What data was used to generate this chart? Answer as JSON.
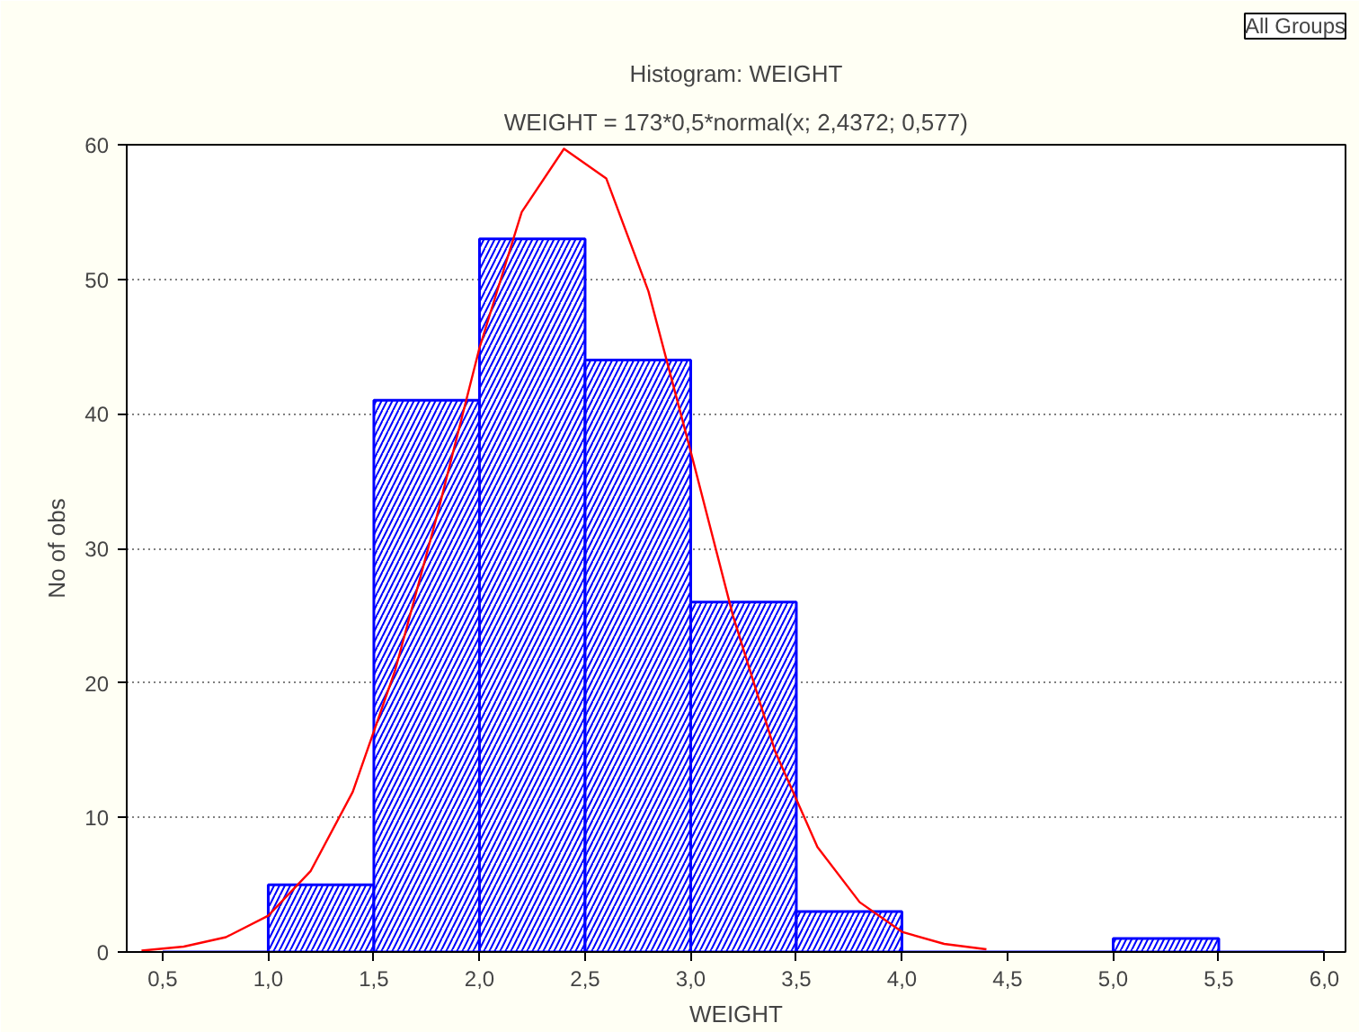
{
  "chart_data": {
    "type": "histogram",
    "title": "Histogram: WEIGHT",
    "subtitle": "WEIGHT = 173*0,5*normal(x; 2,4372; 0,577)",
    "xlabel": "WEIGHT",
    "ylabel": "No of obs",
    "annotations": [
      "All Groups"
    ],
    "bins": [
      0.5,
      1.0,
      1.5,
      2.0,
      2.5,
      3.0,
      3.5,
      4.0,
      4.5,
      5.0,
      5.5,
      6.0
    ],
    "series": [
      {
        "color": "#0000ff",
        "values": [
          0,
          5,
          41,
          53,
          44,
          26,
          3,
          0,
          0,
          1,
          0
        ]
      },
      {
        "type": "line",
        "color": "#ff0000",
        "x": [
          0.4,
          0.6,
          0.8,
          1.0,
          1.2,
          1.4,
          1.6,
          1.8,
          2.0,
          2.2,
          2.4,
          2.6,
          2.8,
          3.0,
          3.2,
          3.4,
          3.6,
          3.8,
          4.0,
          4.2,
          4.4
        ],
        "values": [
          0.1,
          0.4,
          1.1,
          2.7,
          6.0,
          11.9,
          20.9,
          32.5,
          44.9,
          55.0,
          59.7,
          57.5,
          49.1,
          37.2,
          25.0,
          14.9,
          7.8,
          3.7,
          1.5,
          0.6,
          0.2
        ]
      }
    ],
    "xlim": [
      0.33,
      6.1
    ],
    "ylim": [
      0,
      60
    ],
    "xticks": [
      {
        "value": 0.5,
        "label": "0,5"
      },
      {
        "value": 1.0,
        "label": "1,0"
      },
      {
        "value": 1.5,
        "label": "1,5"
      },
      {
        "value": 2.0,
        "label": "2,0"
      },
      {
        "value": 2.5,
        "label": "2,5"
      },
      {
        "value": 3.0,
        "label": "3,0"
      },
      {
        "value": 3.5,
        "label": "3,5"
      },
      {
        "value": 4.0,
        "label": "4,0"
      },
      {
        "value": 4.5,
        "label": "4,5"
      },
      {
        "value": 5.0,
        "label": "5,0"
      },
      {
        "value": 5.5,
        "label": "5,5"
      },
      {
        "value": 6.0,
        "label": "6,0"
      }
    ],
    "yticks": [
      0,
      10,
      20,
      30,
      40,
      50,
      60
    ],
    "grid": "y"
  }
}
